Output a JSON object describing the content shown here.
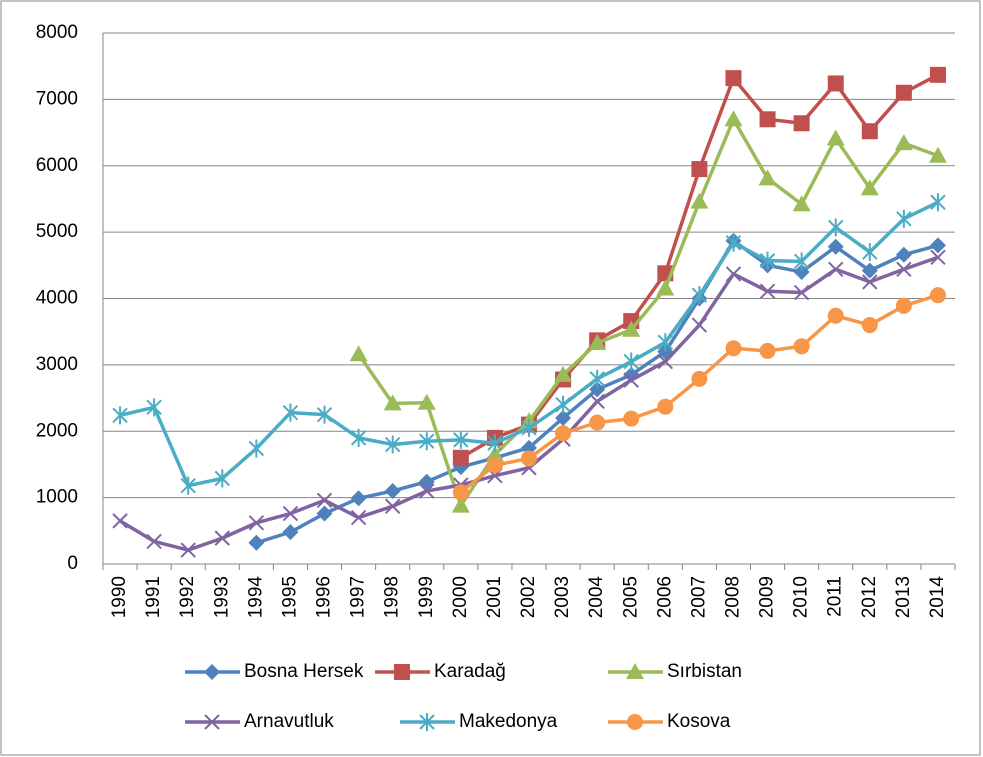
{
  "chart_data": {
    "type": "line",
    "categories": [
      "1990",
      "1991",
      "1992",
      "1993",
      "1994",
      "1995",
      "1996",
      "1997",
      "1998",
      "1999",
      "2000",
      "2001",
      "2002",
      "2003",
      "2004",
      "2005",
      "2006",
      "2007",
      "2008",
      "2009",
      "2010",
      "2011",
      "2012",
      "2013",
      "2014"
    ],
    "ylim": [
      0,
      8000
    ],
    "yticks": [
      0,
      1000,
      2000,
      3000,
      4000,
      5000,
      6000,
      7000,
      8000
    ],
    "grid": true,
    "legend": "bottom",
    "series": [
      {
        "name": "Bosna Hersek",
        "color": "#4f81bd",
        "marker": "diamond",
        "values": [
          null,
          null,
          null,
          null,
          320,
          480,
          760,
          990,
          1100,
          1240,
          1460,
          1600,
          1750,
          2200,
          2630,
          2850,
          3200,
          4000,
          4870,
          4500,
          4400,
          4780,
          4420,
          4660,
          4800
        ]
      },
      {
        "name": "Karadağ",
        "color": "#c0504d",
        "marker": "square",
        "values": [
          null,
          null,
          null,
          null,
          null,
          null,
          null,
          null,
          null,
          null,
          1600,
          1900,
          2100,
          2780,
          3370,
          3660,
          4380,
          5950,
          7320,
          6700,
          6640,
          7240,
          6520,
          7100,
          7370
        ]
      },
      {
        "name": "Sırbistan",
        "color": "#9bbb59",
        "marker": "triangle",
        "values": [
          null,
          null,
          null,
          null,
          null,
          null,
          null,
          3160,
          2420,
          2430,
          880,
          1650,
          2150,
          2850,
          3330,
          3530,
          4150,
          5460,
          6700,
          5810,
          5420,
          6410,
          5660,
          6340,
          6150
        ]
      },
      {
        "name": "Arnavutluk",
        "color": "#8064a2",
        "marker": "x",
        "values": [
          650,
          340,
          210,
          390,
          620,
          760,
          960,
          700,
          870,
          1100,
          1190,
          1330,
          1450,
          1880,
          2450,
          2770,
          3050,
          3600,
          4370,
          4110,
          4090,
          4440,
          4250,
          4440,
          4620
        ]
      },
      {
        "name": "Makedonya",
        "color": "#4bacc6",
        "marker": "star",
        "values": [
          2240,
          2360,
          1180,
          1290,
          1740,
          2280,
          2250,
          1900,
          1800,
          1850,
          1870,
          1820,
          2050,
          2400,
          2790,
          3050,
          3340,
          4050,
          4840,
          4570,
          4560,
          5070,
          4700,
          5200,
          5450
        ]
      },
      {
        "name": "Kosova",
        "color": "#f79646",
        "marker": "circle",
        "values": [
          null,
          null,
          null,
          null,
          null,
          null,
          null,
          null,
          null,
          null,
          1080,
          1490,
          1590,
          1970,
          2130,
          2190,
          2370,
          2790,
          3250,
          3210,
          3280,
          3740,
          3600,
          3890,
          4050
        ]
      }
    ]
  }
}
